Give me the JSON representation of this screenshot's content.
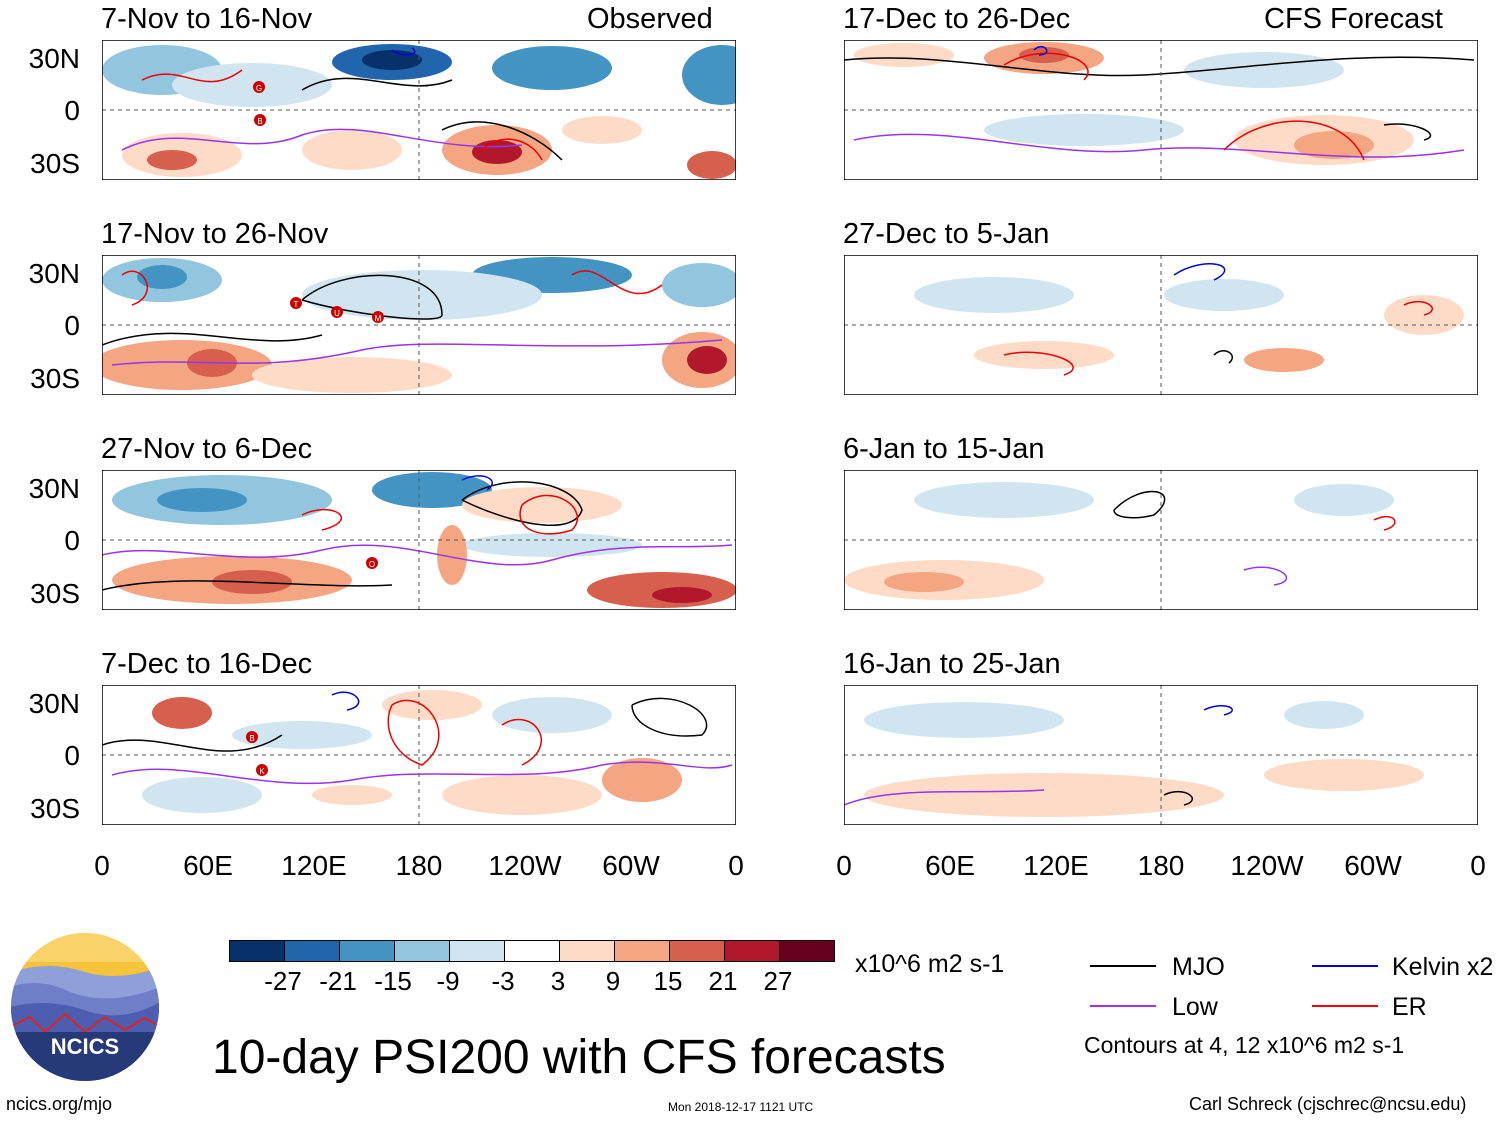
{
  "header": {
    "observed_label": "Observed",
    "forecast_label": "CFS Forecast"
  },
  "panels": {
    "left": [
      {
        "title": "7-Nov to 16-Nov"
      },
      {
        "title": "17-Nov to 26-Nov"
      },
      {
        "title": "27-Nov to 6-Dec"
      },
      {
        "title": "7-Dec to 16-Dec"
      }
    ],
    "right": [
      {
        "title": "17-Dec to 26-Dec"
      },
      {
        "title": "27-Dec to 5-Jan"
      },
      {
        "title": "6-Jan to 15-Jan"
      },
      {
        "title": "16-Jan to 25-Jan"
      }
    ]
  },
  "axes": {
    "y_labels": [
      "30N",
      "0",
      "30S"
    ],
    "x_labels": [
      "0",
      "60E",
      "120E",
      "180",
      "120W",
      "60W",
      "0"
    ]
  },
  "colorbar": {
    "ticks": [
      "-27",
      "-21",
      "-15",
      "-9",
      "-3",
      "3",
      "9",
      "15",
      "21",
      "27"
    ],
    "colors": [
      "#08306b",
      "#2166ac",
      "#4393c3",
      "#92c5de",
      "#d1e5f0",
      "#ffffff",
      "#fddbc7",
      "#f4a582",
      "#d6604d",
      "#b2182b",
      "#67001f"
    ],
    "units": "x10^6 m2 s-1"
  },
  "legend": {
    "mjo": {
      "label": "MJO",
      "color": "#000000"
    },
    "kelvin": {
      "label": "Kelvin x2",
      "color": "#0000dd"
    },
    "low": {
      "label": "Low",
      "color": "#9933ee"
    },
    "er": {
      "label": "ER",
      "color": "#ee0000"
    },
    "contours_note": "Contours at 4, 12 x10^6 m2 s-1"
  },
  "logo": {
    "text": "NCICS"
  },
  "title": "10-day PSI200 with CFS forecasts",
  "footer": {
    "url": "ncics.org/mjo",
    "timestamp": "Mon 2018-12-17 1121 UTC",
    "credit": "Carl Schreck (cjschrec@ncsu.edu)"
  },
  "storm_markers": {
    "p0": [
      "G",
      "B"
    ],
    "p1": [
      "T",
      "U",
      "M"
    ],
    "p2": [
      "O"
    ],
    "p3": [
      "B",
      "K"
    ]
  }
}
